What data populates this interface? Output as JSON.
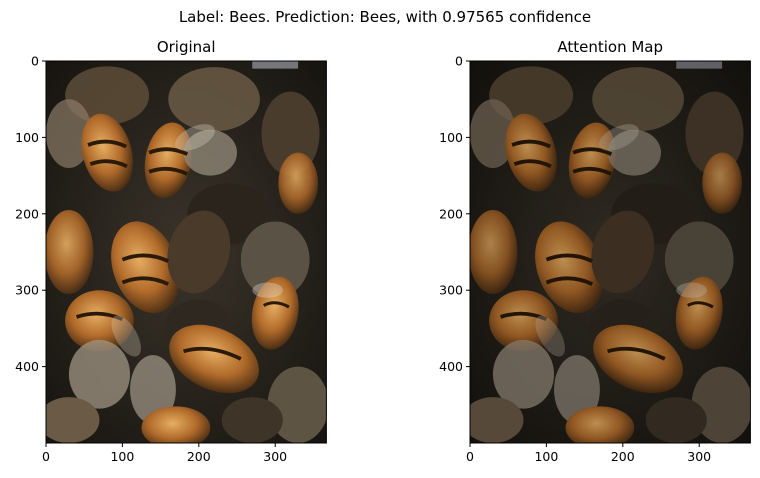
{
  "figure": {
    "suptitle": "Label: Bees. Prediction: Bees, with 0.97565 confidence"
  },
  "chart_data": [
    {
      "type": "image",
      "title": "Original",
      "image_subject": "close-up photo of honey bees",
      "image_width": 367,
      "image_height": 500,
      "xticks": [
        0,
        100,
        200,
        300
      ],
      "yticks": [
        0,
        100,
        200,
        300,
        400
      ],
      "xlim": [
        0,
        367
      ],
      "ylim": [
        500,
        0
      ]
    },
    {
      "type": "image",
      "title": "Attention Map",
      "image_subject": "attention-weighted photo of honey bees",
      "image_width": 367,
      "image_height": 500,
      "xticks": [
        0,
        100,
        200,
        300
      ],
      "yticks": [
        0,
        100,
        200,
        300,
        400
      ],
      "xlim": [
        0,
        367
      ],
      "ylim": [
        500,
        0
      ]
    }
  ],
  "colors": {
    "bee_amber": "#b8732f",
    "bee_dark": "#3a2a1a",
    "background_dark": "#1c1a16",
    "wing": "#8a8070",
    "highlight": "#e0a860"
  }
}
